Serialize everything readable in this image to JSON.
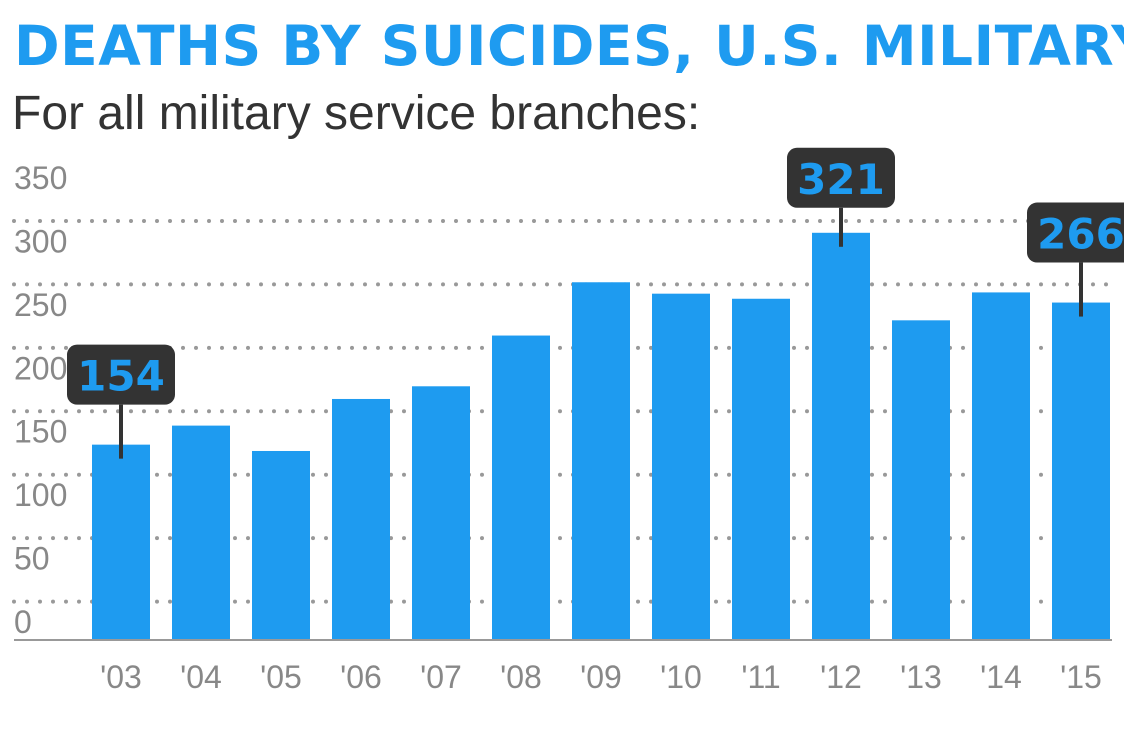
{
  "title": "DEATHS BY SUICIDES, U.S. MILITARY",
  "subtitle": "For all military service branches:",
  "colors": {
    "bar": "#1e9bf0",
    "callout_bg": "#333333",
    "callout_text": "#1e9bf0",
    "title": "#1e9bf0",
    "text": "#333333",
    "grid": "#999999"
  },
  "chart_data": {
    "type": "bar",
    "title": "DEATHS BY SUICIDES, U.S. MILITARY",
    "subtitle": "For all military service branches:",
    "categories": [
      "'03",
      "'04",
      "'05",
      "'06",
      "'07",
      "'08",
      "'09",
      "'10",
      "'11",
      "'12",
      "'13",
      "'14",
      "'15"
    ],
    "values": [
      154,
      169,
      149,
      190,
      200,
      240,
      282,
      273,
      269,
      321,
      252,
      274,
      266
    ],
    "ylim": [
      0,
      350
    ],
    "yticks": [
      0,
      50,
      100,
      150,
      200,
      250,
      300,
      350
    ],
    "grid": true,
    "annotations": [
      {
        "category": "'03",
        "label": "154"
      },
      {
        "category": "'12",
        "label": "321"
      },
      {
        "category": "'15",
        "label": "266"
      }
    ]
  }
}
